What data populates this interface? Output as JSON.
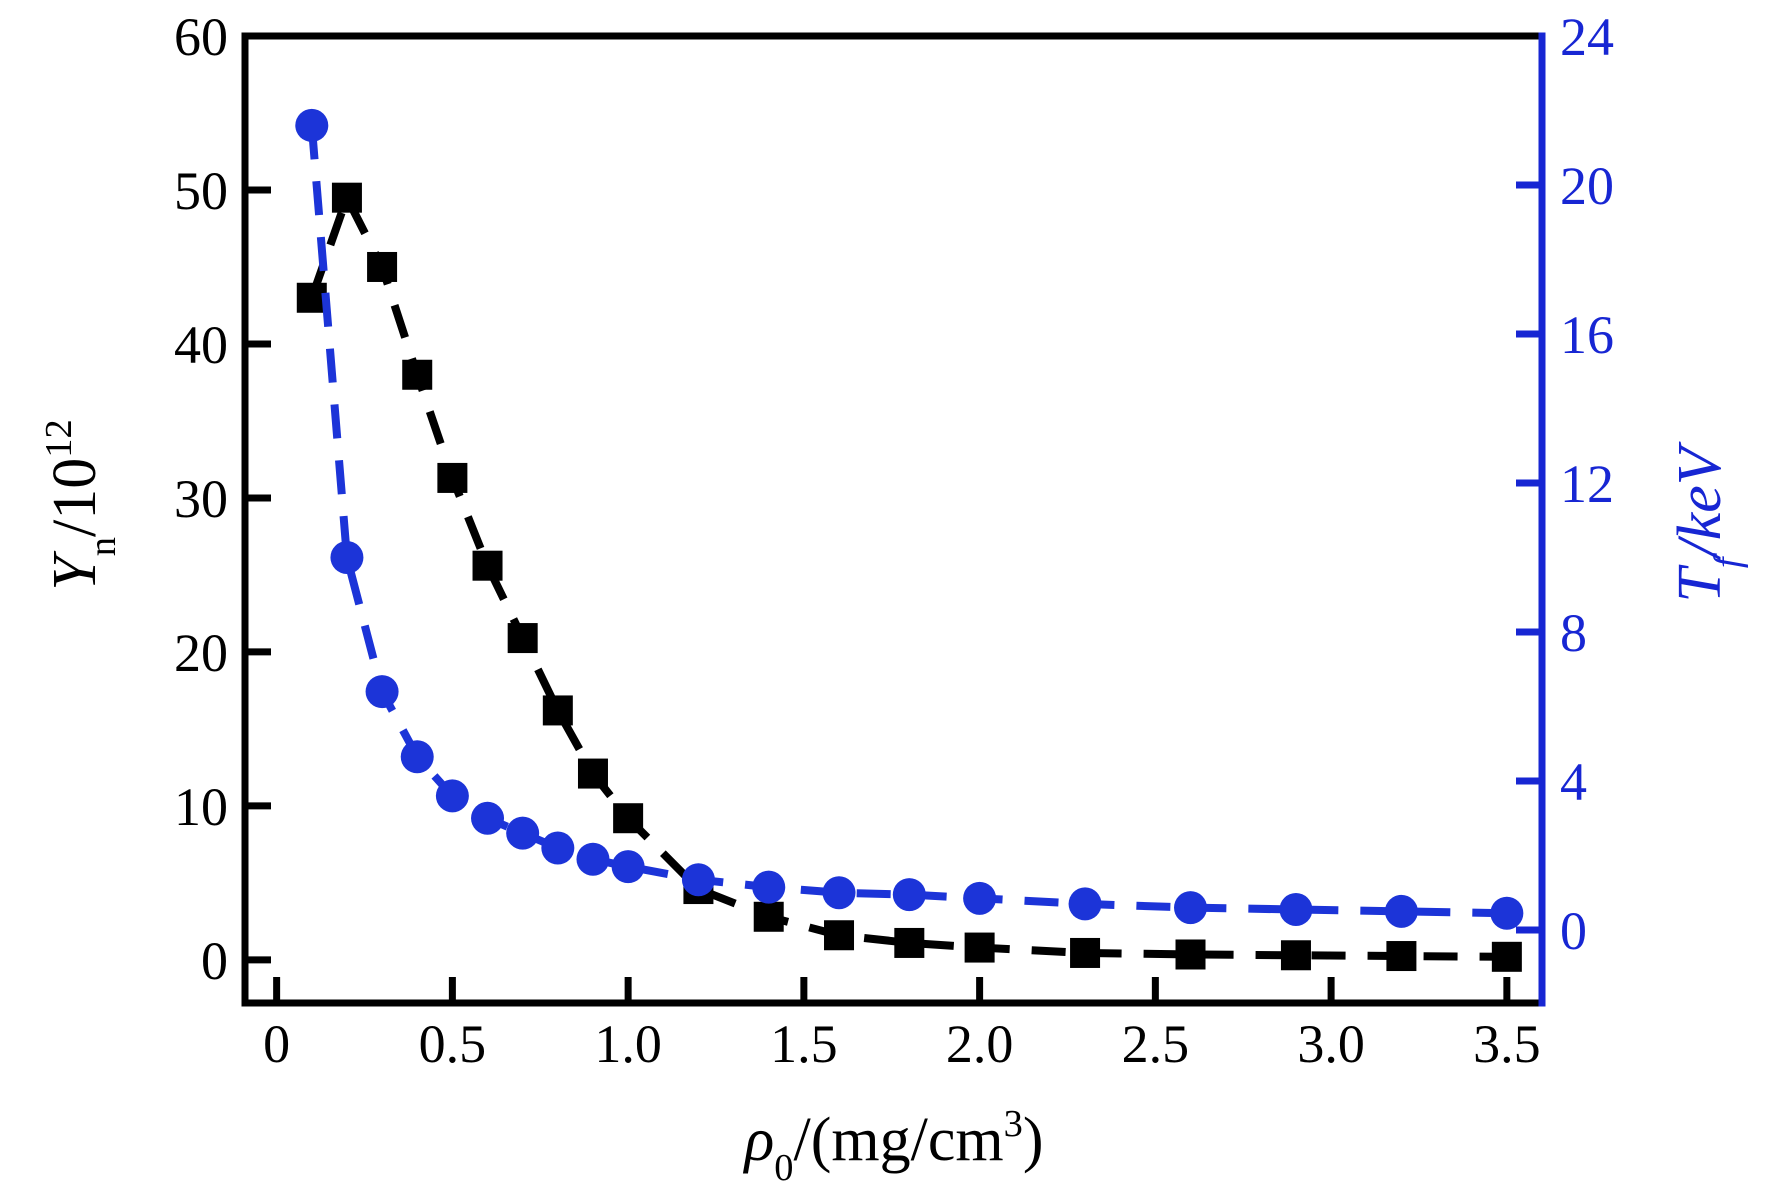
{
  "figure": {
    "background": "#ffffff",
    "colors": {
      "black": "#000000",
      "axis_blue": "#1726d3",
      "marker_blue": "#1c34d8"
    }
  },
  "chart_data": {
    "type": "line",
    "title": "",
    "grid": false,
    "legend": "none",
    "x": [
      0.1,
      0.2,
      0.3,
      0.4,
      0.5,
      0.6,
      0.7,
      0.8,
      0.9,
      1.0,
      1.2,
      1.4,
      1.6,
      1.8,
      2.0,
      2.3,
      2.6,
      2.9,
      3.2,
      3.5
    ],
    "series": [
      {
        "name": "neutron-yield",
        "label": "Yn/10^12",
        "axis": "left",
        "color": "#000000",
        "marker": "square",
        "linestyle": "dashed",
        "values": [
          43.0,
          49.5,
          45.0,
          38.0,
          31.3,
          25.6,
          20.9,
          16.2,
          12.1,
          9.2,
          4.6,
          2.8,
          1.6,
          1.1,
          0.8,
          0.45,
          0.35,
          0.3,
          0.25,
          0.2
        ]
      },
      {
        "name": "ion-temperature",
        "label": "Tf/keV",
        "axis": "right",
        "color": "#1c34d8",
        "marker": "circle",
        "linestyle": "dashed",
        "values": [
          21.6,
          10.0,
          6.4,
          4.65,
          3.6,
          3.0,
          2.6,
          2.2,
          1.9,
          1.7,
          1.35,
          1.15,
          1.0,
          0.95,
          0.85,
          0.7,
          0.6,
          0.55,
          0.5,
          0.45
        ]
      }
    ],
    "x_axis": {
      "label": "ρ0/(mg/cm3)",
      "ticks": [
        0,
        0.5,
        1.0,
        1.5,
        2.0,
        2.5,
        3.0,
        3.5
      ],
      "tick_labels": [
        "0",
        "0.5",
        "1.0",
        "1.5",
        "2.0",
        "2.5",
        "3.0",
        "3.5"
      ],
      "range": [
        -0.09,
        3.6
      ],
      "color": "#000000"
    },
    "left_axis": {
      "label": "Yn/10^12",
      "ticks": [
        0,
        10,
        20,
        30,
        40,
        50,
        60
      ],
      "tick_labels": [
        "0",
        "10",
        "20",
        "30",
        "40",
        "50",
        "60"
      ],
      "range": [
        -2.8,
        60
      ],
      "color": "#000000"
    },
    "right_axis": {
      "label": "Tf/keV",
      "ticks": [
        0,
        4,
        8,
        12,
        16,
        20,
        24
      ],
      "tick_labels": [
        "0",
        "4",
        "8",
        "12",
        "16",
        "20",
        "24"
      ],
      "range": [
        -1.96,
        24
      ],
      "color": "#1726d3"
    }
  },
  "labels": {
    "left_title": {
      "var": "Y",
      "sub": "n",
      "mid": "/10",
      "sup": "12",
      "end": ""
    },
    "right_title": {
      "var": "T",
      "sub": "f",
      "mid": "/keV",
      "sup": "",
      "end": ""
    },
    "x_title": {
      "var": "ρ",
      "sub": "0",
      "mid": "/(mg/cm",
      "sup": "3",
      "end": ")"
    }
  }
}
